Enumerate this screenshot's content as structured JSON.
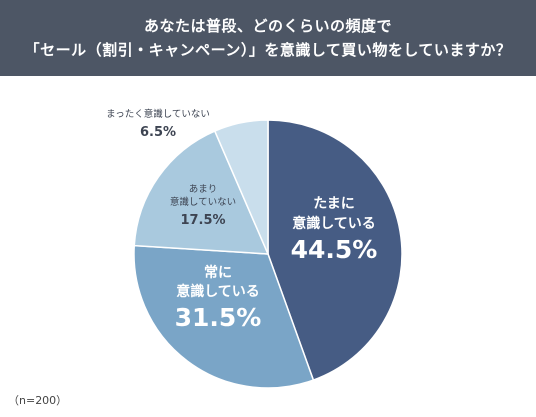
{
  "header": {
    "title_line1": "あなたは普段、どのくらいの頻度で",
    "title_line2": "「セール（割引・キャンペーン）」を意識して買い物をしていますか？"
  },
  "note": "（n=200）",
  "colors": {
    "header_bg": "#4d5665",
    "slice_1": "#465c84",
    "slice_2": "#7aa5c7",
    "slice_3": "#a9c9de",
    "slice_4": "#c9deec"
  },
  "chart_data": {
    "type": "pie",
    "slices": [
      {
        "label_lines": [
          "たまに",
          "意識している"
        ],
        "value_label": "44.5%",
        "value": 44.5
      },
      {
        "label_lines": [
          "常に",
          "意識している"
        ],
        "value_label": "31.5%",
        "value": 31.5
      },
      {
        "label_lines": [
          "あまり",
          "意識していない"
        ],
        "value_label": "17.5%",
        "value": 17.5
      },
      {
        "label_lines": [
          "まったく意識していない"
        ],
        "value_label": "6.5%",
        "value": 6.5
      }
    ]
  }
}
